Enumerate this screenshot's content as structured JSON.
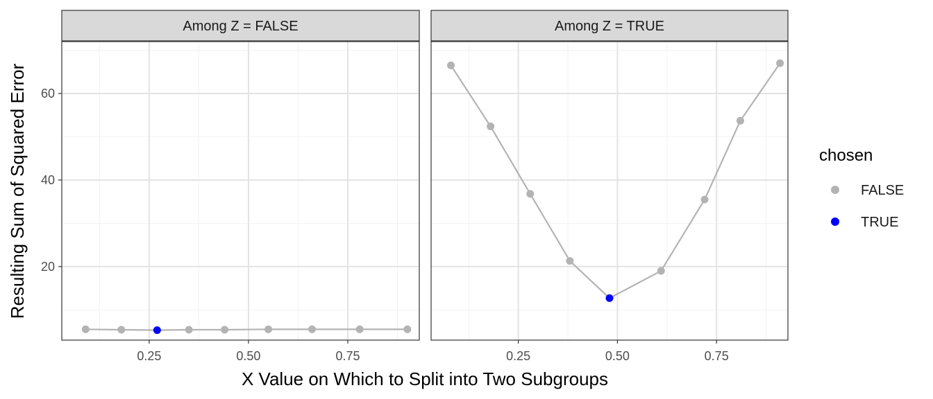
{
  "chart_data": {
    "type": "line",
    "xlabel": "X Value on Which to Split into Two Subgroups",
    "ylabel": "Resulting Sum of Squared Error",
    "xlim": [
      0.03,
      0.93
    ],
    "ylim": [
      3,
      72
    ],
    "x_ticks": [
      0.25,
      0.5,
      0.75
    ],
    "x_tick_labels": [
      "0.25",
      "0.50",
      "0.75"
    ],
    "y_ticks": [
      20,
      40,
      60
    ],
    "y_tick_labels": [
      "20",
      "40",
      "60"
    ],
    "grid": true,
    "legend": {
      "title": "chosen",
      "position": "right",
      "entries": [
        {
          "label": "FALSE",
          "color": "#b3b3b3"
        },
        {
          "label": "TRUE",
          "color": "#0000ff"
        }
      ]
    },
    "line_color": "#b3b3b3",
    "panels": [
      {
        "strip": "Among Z = FALSE",
        "points": [
          {
            "x": 0.09,
            "y": 5.5,
            "chosen": false
          },
          {
            "x": 0.18,
            "y": 5.4,
            "chosen": false
          },
          {
            "x": 0.27,
            "y": 5.3,
            "chosen": true
          },
          {
            "x": 0.35,
            "y": 5.4,
            "chosen": false
          },
          {
            "x": 0.44,
            "y": 5.4,
            "chosen": false
          },
          {
            "x": 0.55,
            "y": 5.5,
            "chosen": false
          },
          {
            "x": 0.66,
            "y": 5.5,
            "chosen": false
          },
          {
            "x": 0.78,
            "y": 5.5,
            "chosen": false
          },
          {
            "x": 0.9,
            "y": 5.5,
            "chosen": false
          }
        ]
      },
      {
        "strip": "Among Z = TRUE",
        "points": [
          {
            "x": 0.08,
            "y": 66.5,
            "chosen": false
          },
          {
            "x": 0.18,
            "y": 52.4,
            "chosen": false
          },
          {
            "x": 0.28,
            "y": 36.8,
            "chosen": false
          },
          {
            "x": 0.38,
            "y": 21.3,
            "chosen": false
          },
          {
            "x": 0.48,
            "y": 12.7,
            "chosen": true
          },
          {
            "x": 0.61,
            "y": 19.0,
            "chosen": false
          },
          {
            "x": 0.72,
            "y": 35.5,
            "chosen": false
          },
          {
            "x": 0.81,
            "y": 53.7,
            "chosen": false
          },
          {
            "x": 0.91,
            "y": 67.0,
            "chosen": false
          }
        ]
      }
    ]
  }
}
